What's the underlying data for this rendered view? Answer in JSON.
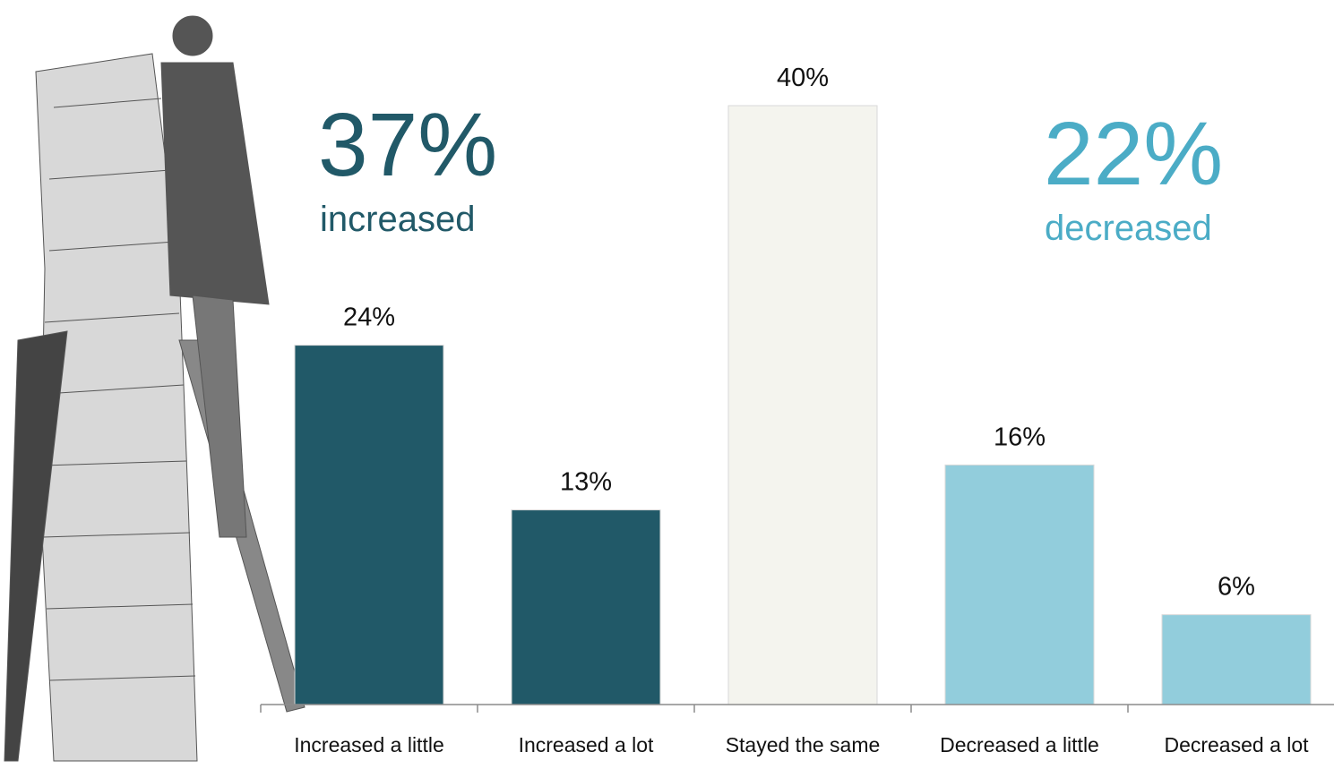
{
  "chart_data": {
    "type": "bar",
    "categories": [
      "Increased a little",
      "Increased a lot",
      "Stayed the same",
      "Decreased a little",
      "Decreased a lot"
    ],
    "values": [
      24,
      13,
      40,
      16,
      6
    ],
    "value_labels": [
      "24%",
      "13%",
      "40%",
      "16%",
      "6%"
    ],
    "colors": [
      "#215968",
      "#215968",
      "#F4F4EE",
      "#92CDDC",
      "#92CDDC"
    ],
    "annotations": [
      {
        "text": "37%",
        "color": "#215968"
      },
      {
        "text": "increased",
        "color": "#215968"
      },
      {
        "text": "22%",
        "color": "#4BACC6"
      },
      {
        "text": "decreased",
        "color": "#4BACC6"
      }
    ]
  }
}
